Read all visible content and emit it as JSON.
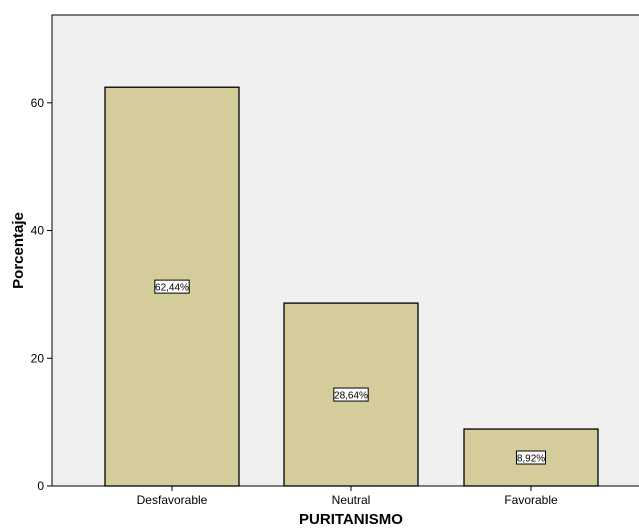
{
  "chart_data": {
    "type": "bar",
    "title": "",
    "xlabel": "PURITANISMO",
    "ylabel": "Porcentaje",
    "categories": [
      "Desfavorable",
      "Neutral",
      "Favorable"
    ],
    "values": [
      62.44,
      28.64,
      8.92
    ],
    "data_labels": [
      "62,44%",
      "28,64%",
      "8,92%"
    ],
    "yticks": [
      0,
      20,
      40,
      60
    ],
    "ytick_labels": [
      "0",
      "20",
      "40",
      "60"
    ],
    "ylim": [
      0,
      73.75
    ],
    "grid": false,
    "legend": "none",
    "colors": {
      "bar_fill": "#d4cd9b",
      "bar_stroke": "#000000",
      "plot_background": "#f0f0f0",
      "page_background": "#ffffff",
      "label_box": "#ffffff"
    }
  }
}
